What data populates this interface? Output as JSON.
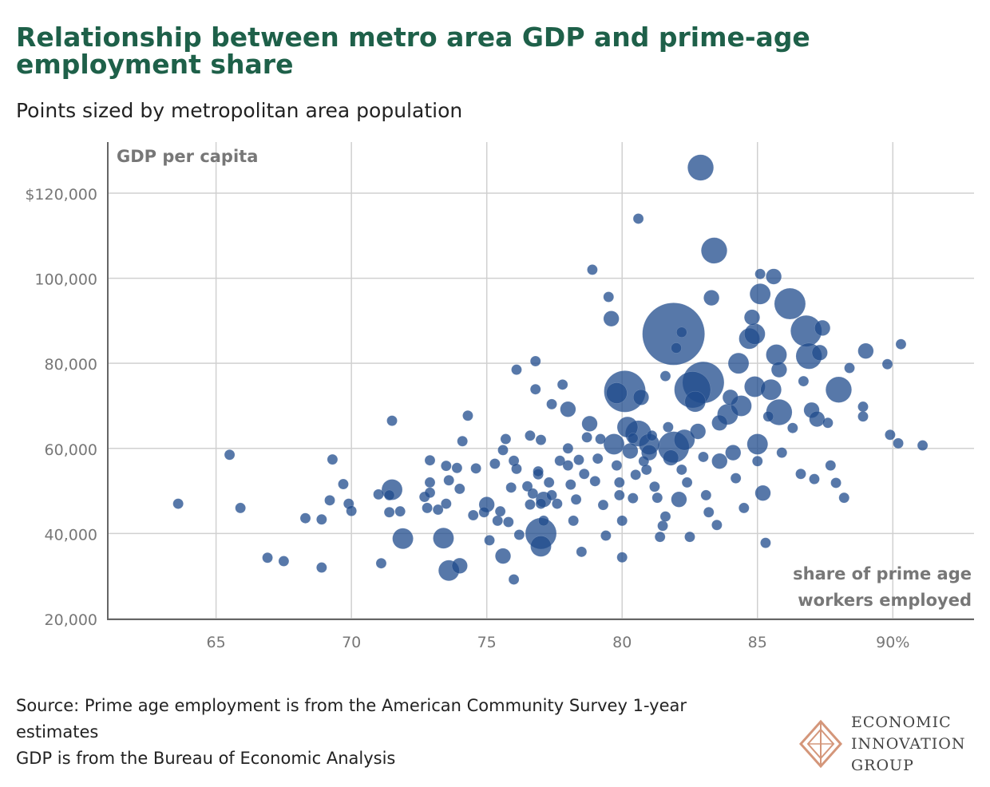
{
  "title": "Relationship between metro area GDP and prime-age employment share",
  "subtitle": "Points sized by metropolitan area population",
  "source_lines": [
    "Source: Prime age employment is from the American Community Survey 1-year estimates",
    "GDP is from the Bureau of Economic Analysis"
  ],
  "logo": {
    "line1": "ECONOMIC",
    "line2": "INNOVATION",
    "line3": "GROUP",
    "accent": "#d4967a"
  },
  "chart_data": {
    "type": "scatter",
    "ylabel": "GDP per capita",
    "xlabel_line1": "share of prime age",
    "xlabel_line2": "workers employed",
    "xlim": [
      61,
      93
    ],
    "ylim": [
      20000,
      132000
    ],
    "x_ticks": [
      65,
      70,
      75,
      80,
      85,
      90
    ],
    "x_tick_labels": [
      "65",
      "70",
      "75",
      "80",
      "85",
      "90%"
    ],
    "y_ticks": [
      20000,
      40000,
      60000,
      80000,
      100000,
      120000
    ],
    "y_tick_labels": [
      "20,000",
      "40,000",
      "60,000",
      "80,000",
      "100,000",
      "$120,000"
    ],
    "grid": true,
    "point_color": "#1f4b8c",
    "point_opacity": 0.75,
    "size_encoding": "metropolitan area population (relative)",
    "points": [
      {
        "x": 63.6,
        "y": 47000,
        "s": 1
      },
      {
        "x": 65.5,
        "y": 58500,
        "s": 1
      },
      {
        "x": 65.9,
        "y": 46000,
        "s": 1
      },
      {
        "x": 66.9,
        "y": 34300,
        "s": 1
      },
      {
        "x": 67.5,
        "y": 33500,
        "s": 1
      },
      {
        "x": 68.3,
        "y": 43600,
        "s": 1
      },
      {
        "x": 68.9,
        "y": 32000,
        "s": 1
      },
      {
        "x": 68.9,
        "y": 43300,
        "s": 1
      },
      {
        "x": 69.2,
        "y": 47800,
        "s": 1
      },
      {
        "x": 69.3,
        "y": 57400,
        "s": 1
      },
      {
        "x": 69.7,
        "y": 51600,
        "s": 1
      },
      {
        "x": 69.9,
        "y": 47000,
        "s": 1
      },
      {
        "x": 70.0,
        "y": 45300,
        "s": 1
      },
      {
        "x": 71.0,
        "y": 49200,
        "s": 1
      },
      {
        "x": 71.1,
        "y": 33000,
        "s": 1
      },
      {
        "x": 71.4,
        "y": 45000,
        "s": 1
      },
      {
        "x": 71.4,
        "y": 49000,
        "s": 1
      },
      {
        "x": 71.5,
        "y": 66500,
        "s": 1
      },
      {
        "x": 71.5,
        "y": 50300,
        "s": 2
      },
      {
        "x": 71.8,
        "y": 45200,
        "s": 1
      },
      {
        "x": 71.9,
        "y": 38800,
        "s": 2
      },
      {
        "x": 72.7,
        "y": 48600,
        "s": 1
      },
      {
        "x": 72.8,
        "y": 46000,
        "s": 1
      },
      {
        "x": 72.9,
        "y": 57200,
        "s": 1
      },
      {
        "x": 72.9,
        "y": 52000,
        "s": 1
      },
      {
        "x": 72.9,
        "y": 49600,
        "s": 1
      },
      {
        "x": 73.2,
        "y": 45600,
        "s": 1
      },
      {
        "x": 73.4,
        "y": 38900,
        "s": 2
      },
      {
        "x": 73.5,
        "y": 47000,
        "s": 1
      },
      {
        "x": 73.5,
        "y": 55900,
        "s": 1
      },
      {
        "x": 73.6,
        "y": 31300,
        "s": 2
      },
      {
        "x": 73.6,
        "y": 52500,
        "s": 1
      },
      {
        "x": 73.9,
        "y": 55400,
        "s": 1
      },
      {
        "x": 74.0,
        "y": 32400,
        "s": 1.5
      },
      {
        "x": 74.0,
        "y": 50500,
        "s": 1
      },
      {
        "x": 74.1,
        "y": 61700,
        "s": 1
      },
      {
        "x": 74.3,
        "y": 67700,
        "s": 1
      },
      {
        "x": 74.5,
        "y": 44300,
        "s": 1
      },
      {
        "x": 74.6,
        "y": 55300,
        "s": 1
      },
      {
        "x": 74.9,
        "y": 45000,
        "s": 1
      },
      {
        "x": 75.0,
        "y": 46800,
        "s": 1.5
      },
      {
        "x": 75.1,
        "y": 38400,
        "s": 1
      },
      {
        "x": 75.3,
        "y": 56400,
        "s": 1
      },
      {
        "x": 75.4,
        "y": 43000,
        "s": 1
      },
      {
        "x": 75.5,
        "y": 45200,
        "s": 1
      },
      {
        "x": 75.6,
        "y": 59600,
        "s": 1
      },
      {
        "x": 75.6,
        "y": 34700,
        "s": 1.5
      },
      {
        "x": 75.7,
        "y": 62200,
        "s": 1
      },
      {
        "x": 75.8,
        "y": 42700,
        "s": 1
      },
      {
        "x": 75.9,
        "y": 50800,
        "s": 1
      },
      {
        "x": 76.0,
        "y": 57100,
        "s": 1
      },
      {
        "x": 76.0,
        "y": 29200,
        "s": 1
      },
      {
        "x": 76.1,
        "y": 55200,
        "s": 1
      },
      {
        "x": 76.1,
        "y": 78500,
        "s": 1
      },
      {
        "x": 76.2,
        "y": 39700,
        "s": 1
      },
      {
        "x": 76.5,
        "y": 51100,
        "s": 1
      },
      {
        "x": 76.6,
        "y": 46800,
        "s": 1
      },
      {
        "x": 76.6,
        "y": 63000,
        "s": 1
      },
      {
        "x": 76.7,
        "y": 49400,
        "s": 1
      },
      {
        "x": 76.8,
        "y": 80500,
        "s": 1
      },
      {
        "x": 76.8,
        "y": 73900,
        "s": 1
      },
      {
        "x": 76.9,
        "y": 53900,
        "s": 1
      },
      {
        "x": 76.9,
        "y": 54600,
        "s": 1
      },
      {
        "x": 77.0,
        "y": 62000,
        "s": 1
      },
      {
        "x": 77.0,
        "y": 47000,
        "s": 1
      },
      {
        "x": 77.0,
        "y": 40000,
        "s": 3
      },
      {
        "x": 77.0,
        "y": 37000,
        "s": 2
      },
      {
        "x": 77.1,
        "y": 43000,
        "s": 1
      },
      {
        "x": 77.1,
        "y": 48000,
        "s": 1.5
      },
      {
        "x": 77.3,
        "y": 52000,
        "s": 1
      },
      {
        "x": 77.4,
        "y": 70400,
        "s": 1
      },
      {
        "x": 77.4,
        "y": 49000,
        "s": 1
      },
      {
        "x": 77.6,
        "y": 47000,
        "s": 1
      },
      {
        "x": 77.7,
        "y": 57100,
        "s": 1
      },
      {
        "x": 77.8,
        "y": 75000,
        "s": 1
      },
      {
        "x": 78.0,
        "y": 69200,
        "s": 1.5
      },
      {
        "x": 78.0,
        "y": 60000,
        "s": 1
      },
      {
        "x": 78.0,
        "y": 56000,
        "s": 1
      },
      {
        "x": 78.1,
        "y": 51500,
        "s": 1
      },
      {
        "x": 78.2,
        "y": 43000,
        "s": 1
      },
      {
        "x": 78.3,
        "y": 48000,
        "s": 1
      },
      {
        "x": 78.4,
        "y": 57300,
        "s": 1
      },
      {
        "x": 78.5,
        "y": 35700,
        "s": 1
      },
      {
        "x": 78.6,
        "y": 54000,
        "s": 1
      },
      {
        "x": 78.7,
        "y": 62600,
        "s": 1
      },
      {
        "x": 78.8,
        "y": 65800,
        "s": 1.5
      },
      {
        "x": 78.9,
        "y": 102000,
        "s": 1
      },
      {
        "x": 79.0,
        "y": 52300,
        "s": 1
      },
      {
        "x": 79.1,
        "y": 57600,
        "s": 1
      },
      {
        "x": 79.2,
        "y": 62200,
        "s": 1
      },
      {
        "x": 79.3,
        "y": 46700,
        "s": 1
      },
      {
        "x": 79.4,
        "y": 39500,
        "s": 1
      },
      {
        "x": 79.5,
        "y": 95600,
        "s": 1
      },
      {
        "x": 79.6,
        "y": 90500,
        "s": 1.5
      },
      {
        "x": 79.7,
        "y": 61000,
        "s": 2
      },
      {
        "x": 79.8,
        "y": 73000,
        "s": 2
      },
      {
        "x": 79.8,
        "y": 56000,
        "s": 1
      },
      {
        "x": 79.9,
        "y": 52000,
        "s": 1
      },
      {
        "x": 79.9,
        "y": 49000,
        "s": 1
      },
      {
        "x": 80.0,
        "y": 43000,
        "s": 1
      },
      {
        "x": 80.0,
        "y": 34400,
        "s": 1
      },
      {
        "x": 80.1,
        "y": 73400,
        "s": 4
      },
      {
        "x": 80.2,
        "y": 65000,
        "s": 2
      },
      {
        "x": 80.3,
        "y": 59400,
        "s": 1.5
      },
      {
        "x": 80.4,
        "y": 62400,
        "s": 1
      },
      {
        "x": 80.4,
        "y": 48300,
        "s": 1
      },
      {
        "x": 80.5,
        "y": 53800,
        "s": 1
      },
      {
        "x": 80.6,
        "y": 114000,
        "s": 1
      },
      {
        "x": 80.6,
        "y": 63500,
        "s": 2.5
      },
      {
        "x": 80.7,
        "y": 72000,
        "s": 1.5
      },
      {
        "x": 80.8,
        "y": 57000,
        "s": 1
      },
      {
        "x": 80.9,
        "y": 55000,
        "s": 1
      },
      {
        "x": 81.0,
        "y": 61000,
        "s": 2
      },
      {
        "x": 81.0,
        "y": 59000,
        "s": 1.5
      },
      {
        "x": 81.1,
        "y": 63000,
        "s": 1
      },
      {
        "x": 81.2,
        "y": 51000,
        "s": 1
      },
      {
        "x": 81.3,
        "y": 48400,
        "s": 1
      },
      {
        "x": 81.4,
        "y": 39200,
        "s": 1
      },
      {
        "x": 81.5,
        "y": 41800,
        "s": 1
      },
      {
        "x": 81.6,
        "y": 44000,
        "s": 1
      },
      {
        "x": 81.6,
        "y": 77000,
        "s": 1
      },
      {
        "x": 81.7,
        "y": 65000,
        "s": 1
      },
      {
        "x": 81.8,
        "y": 57800,
        "s": 1.5
      },
      {
        "x": 81.9,
        "y": 60300,
        "s": 3
      },
      {
        "x": 81.9,
        "y": 86900,
        "s": 6
      },
      {
        "x": 82.0,
        "y": 83600,
        "s": 1
      },
      {
        "x": 82.1,
        "y": 48000,
        "s": 1.5
      },
      {
        "x": 82.2,
        "y": 55000,
        "s": 1
      },
      {
        "x": 82.2,
        "y": 87300,
        "s": 1
      },
      {
        "x": 82.3,
        "y": 62000,
        "s": 2
      },
      {
        "x": 82.4,
        "y": 52000,
        "s": 1
      },
      {
        "x": 82.5,
        "y": 39200,
        "s": 1
      },
      {
        "x": 82.6,
        "y": 73800,
        "s": 3.5
      },
      {
        "x": 82.7,
        "y": 71000,
        "s": 2
      },
      {
        "x": 82.8,
        "y": 64000,
        "s": 1.5
      },
      {
        "x": 82.9,
        "y": 126000,
        "s": 2.5
      },
      {
        "x": 83.0,
        "y": 75500,
        "s": 4
      },
      {
        "x": 83.0,
        "y": 58000,
        "s": 1
      },
      {
        "x": 83.1,
        "y": 49000,
        "s": 1
      },
      {
        "x": 83.2,
        "y": 45000,
        "s": 1
      },
      {
        "x": 83.3,
        "y": 95400,
        "s": 1.5
      },
      {
        "x": 83.4,
        "y": 106500,
        "s": 2.5
      },
      {
        "x": 83.5,
        "y": 42000,
        "s": 1
      },
      {
        "x": 83.6,
        "y": 66000,
        "s": 1.5
      },
      {
        "x": 83.6,
        "y": 57000,
        "s": 1.5
      },
      {
        "x": 83.9,
        "y": 68000,
        "s": 2
      },
      {
        "x": 84.0,
        "y": 72000,
        "s": 1.5
      },
      {
        "x": 84.1,
        "y": 59000,
        "s": 1.5
      },
      {
        "x": 84.2,
        "y": 53000,
        "s": 1
      },
      {
        "x": 84.3,
        "y": 80000,
        "s": 2
      },
      {
        "x": 84.4,
        "y": 70000,
        "s": 2
      },
      {
        "x": 84.5,
        "y": 46000,
        "s": 1
      },
      {
        "x": 84.7,
        "y": 85800,
        "s": 2
      },
      {
        "x": 84.8,
        "y": 90800,
        "s": 1.5
      },
      {
        "x": 84.9,
        "y": 74500,
        "s": 2
      },
      {
        "x": 84.9,
        "y": 86900,
        "s": 2
      },
      {
        "x": 85.0,
        "y": 61000,
        "s": 2
      },
      {
        "x": 85.0,
        "y": 57000,
        "s": 1
      },
      {
        "x": 85.1,
        "y": 101000,
        "s": 1
      },
      {
        "x": 85.1,
        "y": 96300,
        "s": 2
      },
      {
        "x": 85.2,
        "y": 49500,
        "s": 1.5
      },
      {
        "x": 85.3,
        "y": 37800,
        "s": 1
      },
      {
        "x": 85.4,
        "y": 67500,
        "s": 1
      },
      {
        "x": 85.5,
        "y": 73800,
        "s": 2
      },
      {
        "x": 85.6,
        "y": 100400,
        "s": 1.5
      },
      {
        "x": 85.7,
        "y": 82000,
        "s": 2
      },
      {
        "x": 85.8,
        "y": 68500,
        "s": 2.5
      },
      {
        "x": 85.8,
        "y": 78500,
        "s": 1.5
      },
      {
        "x": 85.9,
        "y": 59000,
        "s": 1
      },
      {
        "x": 86.2,
        "y": 94000,
        "s": 3
      },
      {
        "x": 86.3,
        "y": 64800,
        "s": 1
      },
      {
        "x": 86.6,
        "y": 54000,
        "s": 1
      },
      {
        "x": 86.7,
        "y": 75800,
        "s": 1
      },
      {
        "x": 86.8,
        "y": 87600,
        "s": 3
      },
      {
        "x": 86.9,
        "y": 81700,
        "s": 2.5
      },
      {
        "x": 87.0,
        "y": 69000,
        "s": 1.5
      },
      {
        "x": 87.1,
        "y": 52800,
        "s": 1
      },
      {
        "x": 87.2,
        "y": 66900,
        "s": 1.5
      },
      {
        "x": 87.3,
        "y": 82500,
        "s": 1.5
      },
      {
        "x": 87.4,
        "y": 88300,
        "s": 1.5
      },
      {
        "x": 87.6,
        "y": 66000,
        "s": 1
      },
      {
        "x": 87.7,
        "y": 56000,
        "s": 1
      },
      {
        "x": 87.9,
        "y": 51900,
        "s": 1
      },
      {
        "x": 88.0,
        "y": 73800,
        "s": 2.5
      },
      {
        "x": 88.2,
        "y": 48400,
        "s": 1
      },
      {
        "x": 88.4,
        "y": 78900,
        "s": 1
      },
      {
        "x": 88.9,
        "y": 69800,
        "s": 1
      },
      {
        "x": 88.9,
        "y": 67500,
        "s": 1
      },
      {
        "x": 89.0,
        "y": 82900,
        "s": 1.5
      },
      {
        "x": 89.8,
        "y": 79800,
        "s": 1
      },
      {
        "x": 89.9,
        "y": 63200,
        "s": 1
      },
      {
        "x": 90.2,
        "y": 61200,
        "s": 1
      },
      {
        "x": 90.3,
        "y": 84500,
        "s": 1
      },
      {
        "x": 91.1,
        "y": 60700,
        "s": 1
      }
    ]
  }
}
